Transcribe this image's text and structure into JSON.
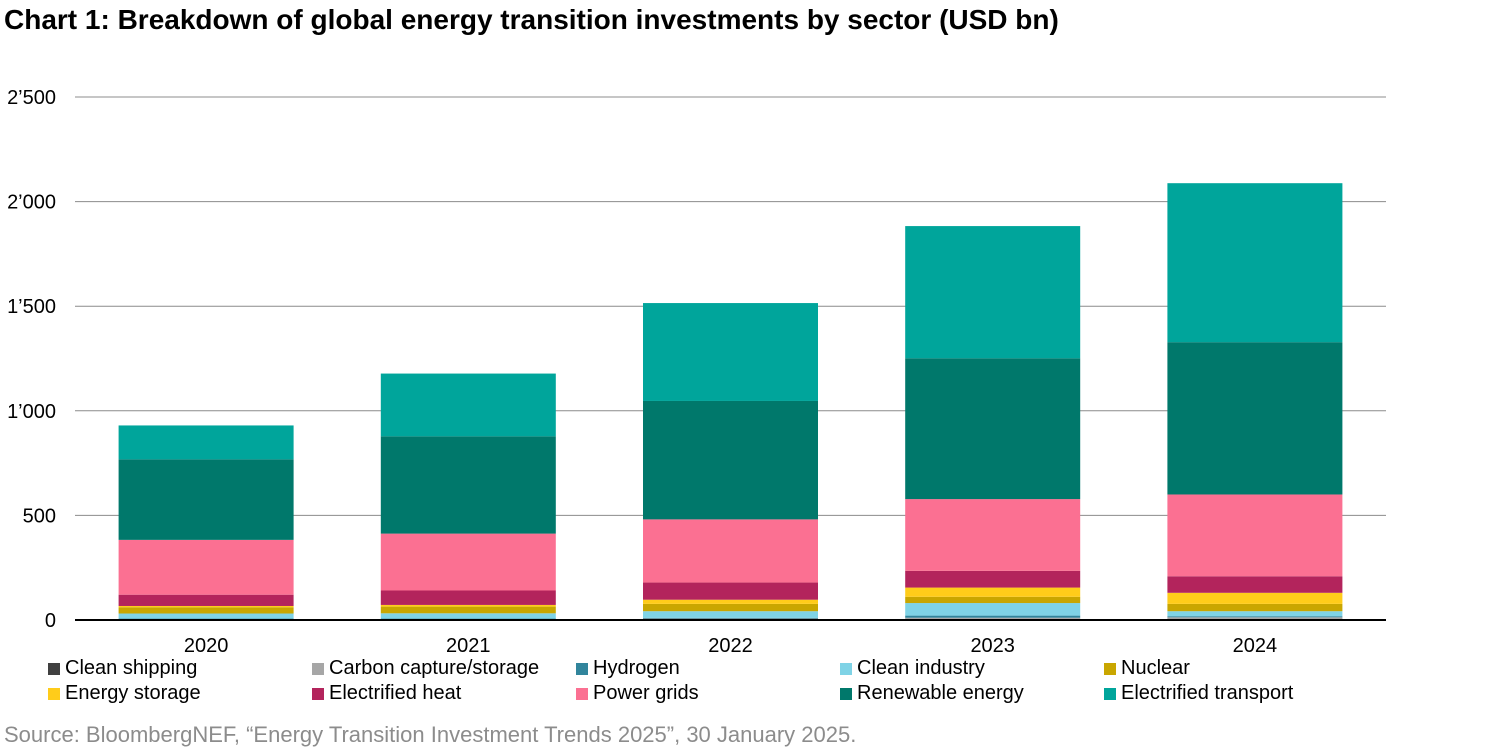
{
  "title": "Chart 1: Breakdown of global energy transition investments by sector (USD bn)",
  "source": "Source: BloombergNEF, “Energy Transition Investment Trends 2025”, 30 January 2025.",
  "chart_data": {
    "type": "bar",
    "stacked": true,
    "categories": [
      "2020",
      "2021",
      "2022",
      "2023",
      "2024"
    ],
    "ylim": [
      0,
      2500
    ],
    "yticks": [
      {
        "value": 0,
        "label": "0"
      },
      {
        "value": 500,
        "label": "500"
      },
      {
        "value": 1000,
        "label": "1’000"
      },
      {
        "value": 1500,
        "label": "1’500"
      },
      {
        "value": 2000,
        "label": "2’000"
      },
      {
        "value": 2500,
        "label": "2’500"
      }
    ],
    "grid": true,
    "legend_position": "bottom",
    "series": [
      {
        "name": "Clean shipping",
        "color": "#404040",
        "values": [
          2,
          2,
          3,
          5,
          6
        ]
      },
      {
        "name": "Carbon capture/storage",
        "color": "#a6a6a6",
        "values": [
          3,
          3,
          4,
          6,
          7
        ]
      },
      {
        "name": "Hydrogen",
        "color": "#31859c",
        "values": [
          2,
          2,
          3,
          10,
          5
        ]
      },
      {
        "name": "Clean industry",
        "color": "#7fd3e6",
        "values": [
          24,
          25,
          32,
          60,
          24
        ]
      },
      {
        "name": "Nuclear",
        "color": "#c9a600",
        "values": [
          30,
          32,
          35,
          30,
          35
        ]
      },
      {
        "name": "Energy storage",
        "color": "#ffcc1a",
        "values": [
          6,
          8,
          20,
          44,
          53
        ]
      },
      {
        "name": "Electrified heat",
        "color": "#b3245c",
        "values": [
          54,
          69,
          82,
          80,
          79
        ]
      },
      {
        "name": "Power grids",
        "color": "#fb7092",
        "values": [
          262,
          272,
          302,
          343,
          391
        ]
      },
      {
        "name": "Renewable energy",
        "color": "#00786b",
        "values": [
          385,
          465,
          566,
          673,
          728
        ]
      },
      {
        "name": "Electrified transport",
        "color": "#00a59b",
        "values": [
          162,
          300,
          468,
          632,
          760
        ]
      }
    ]
  }
}
